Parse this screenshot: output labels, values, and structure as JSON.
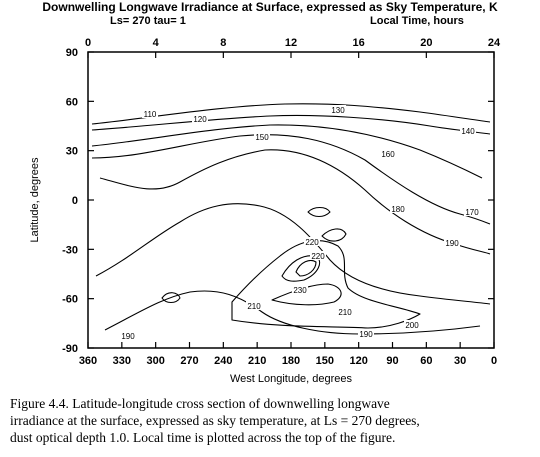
{
  "chart_data": {
    "type": "contour",
    "title": "Downwelling Longwave Irradiance at Surface, expressed as Sky Temperature, K",
    "params_label": "Ls= 270   tau= 1",
    "top_axis_label": "Local Time, hours",
    "top_ticks": [
      "0",
      "4",
      "8",
      "12",
      "16",
      "20",
      "24"
    ],
    "top_range": [
      0,
      24
    ],
    "xlabel": "West Longitude, degrees",
    "x_ticks": [
      "360",
      "330",
      "300",
      "270",
      "240",
      "210",
      "180",
      "150",
      "120",
      "90",
      "60",
      "30",
      "0"
    ],
    "x_range": [
      360,
      0
    ],
    "ylabel": "Latitude, degrees",
    "y_ticks": [
      "90",
      "60",
      "30",
      "0",
      "-30",
      "-60",
      "-90"
    ],
    "y_range": [
      -90,
      90
    ],
    "contour_levels": [
      "110",
      "120",
      "130",
      "140",
      "150",
      "160",
      "170",
      "180",
      "190",
      "200",
      "210",
      "220",
      "230"
    ]
  },
  "caption": {
    "line1": "Figure 4.4.    Latitude-longitude cross section of downwelling longwave",
    "line2": "irradiance at the surface, expressed as sky temperature, at Ls = 270 degrees,",
    "line3": "dust optical depth 1.0.  Local time is plotted across the top of the figure."
  }
}
